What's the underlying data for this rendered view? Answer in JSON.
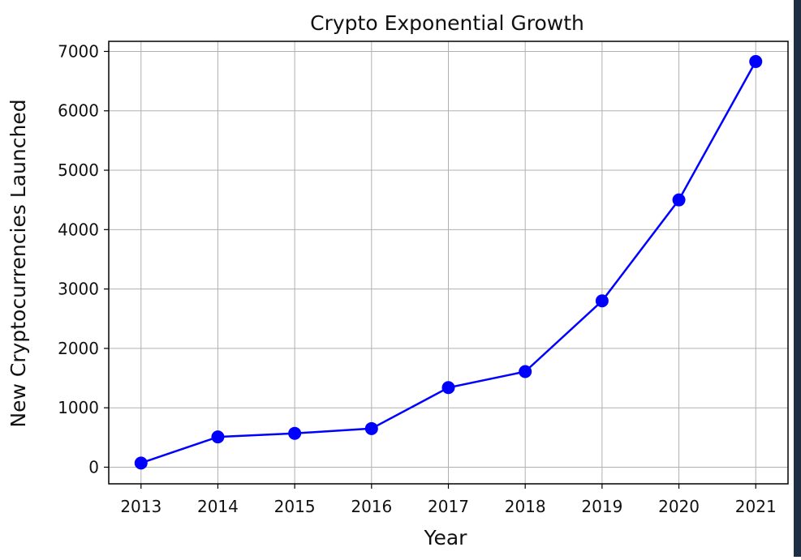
{
  "chart_data": {
    "type": "line",
    "title": "Crypto Exponential Growth",
    "xlabel": "Year",
    "ylabel": "New Cryptocurrencies Launched",
    "x": [
      "2013",
      "2014",
      "2015",
      "2016",
      "2017",
      "2018",
      "2019",
      "2020",
      "2021"
    ],
    "series": [
      {
        "values": [
          70,
          510,
          570,
          650,
          1340,
          1610,
          2800,
          4500,
          6830
        ]
      }
    ],
    "xlim": [
      2012.58,
      2021.42
    ],
    "ylim": [
      -280,
      7170
    ],
    "yticks": [
      0,
      1000,
      2000,
      3000,
      4000,
      5000,
      6000,
      7000
    ],
    "grid": true,
    "line_color": "#0000ff",
    "marker": "circle"
  }
}
